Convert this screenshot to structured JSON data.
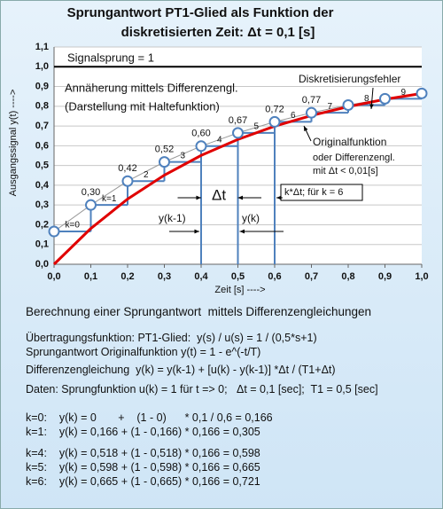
{
  "chart_data": {
    "type": "line",
    "title": "Sprungantwort PT1-Glied als Funktion der",
    "subtitle": "diskretisierten Zeit:  Δt = 0,1 [s]",
    "x_label": "Zeit [s] ---->",
    "y_label": "Ausgangssignal y(t)   ---->",
    "x": [
      0,
      0.1,
      0.2,
      0.3,
      0.4,
      0.5,
      0.6,
      0.7,
      0.8,
      0.9,
      1.0
    ],
    "series": [
      {
        "color": "#e00000",
        "values": [
          0,
          0.181,
          0.33,
          0.451,
          0.551,
          0.632,
          0.699,
          0.753,
          0.798,
          0.835,
          0.865
        ]
      },
      {
        "color": "#4f81bd",
        "values": [
          0.166,
          0.3,
          0.421,
          0.518,
          0.598,
          0.665,
          0.721,
          0.767,
          0.806,
          0.838,
          0.865
        ],
        "value_labels": [
          null,
          "0,30",
          "0,42",
          "0,52",
          "0,60",
          "0,67",
          "0,72",
          "0,77",
          null,
          null,
          null
        ],
        "step_labels": [
          "k=0",
          "k=1",
          "2",
          "3",
          "4",
          "5",
          "6",
          "7",
          "8",
          "9",
          null
        ]
      }
    ],
    "xlim": [
      0,
      1.0
    ],
    "xticks": [
      {
        "value": 0,
        "label": "0,0"
      },
      {
        "value": 0.1,
        "label": "0,1"
      },
      {
        "value": 0.2,
        "label": "0,2"
      },
      {
        "value": 0.3,
        "label": "0,3"
      },
      {
        "value": 0.4,
        "label": "0,4"
      },
      {
        "value": 0.5,
        "label": "0,5"
      },
      {
        "value": 0.6,
        "label": "0,6"
      },
      {
        "value": 0.7,
        "label": "0,7"
      },
      {
        "value": 0.8,
        "label": "0,8"
      },
      {
        "value": 0.9,
        "label": "0,9"
      },
      {
        "value": 1.0,
        "label": "1,0"
      }
    ],
    "ylim": [
      0,
      1.1
    ],
    "yticks": [
      {
        "value": 0,
        "label": "0,0"
      },
      {
        "value": 0.1,
        "label": "0,1"
      },
      {
        "value": 0.2,
        "label": "0,2"
      },
      {
        "value": 0.3,
        "label": "0,3"
      },
      {
        "value": 0.4,
        "label": "0,4"
      },
      {
        "value": 0.5,
        "label": "0,5"
      },
      {
        "value": 0.6,
        "label": "0,6"
      },
      {
        "value": 0.7,
        "label": "0,7"
      },
      {
        "value": 0.8,
        "label": "0,8"
      },
      {
        "value": 0.9,
        "label": "0,9"
      },
      {
        "value": 1.0,
        "label": "1,0"
      },
      {
        "value": 1.1,
        "label": "1,1"
      }
    ],
    "grid": true,
    "step_level": 1.0,
    "annotations": [
      "Signalsprung = 1",
      "Annäherung mittels Differenzengl.",
      "(Darstellung mit Haltefunktion)",
      "Diskretisierungsfehler",
      "Originalfunktion",
      "oder Differenzengl.",
      "mit Δt < 0,01[s]",
      "Δt",
      "y(k-1)",
      "y(k)",
      "k*Δt;  für k = 6"
    ]
  },
  "document": {
    "heading": "Berechnung einer Sprungantwort  mittels Differenzengleichungen",
    "lines": [
      "Übertragungsfunktion: PT1-Glied:  y(s) / u(s) = 1 / (0,5*s+1)",
      "Sprungantwort Originalfunktion y(t) = 1 - e^(-t/T)",
      "Differenzengleichung  y(k) = y(k-1) + [u(k) - y(k-1)] *Δt / (T1+Δt)",
      "Daten: Sprungfunktion u(k) = 1 für t => 0;   Δt = 0,1 [sec];  T1 = 0,5 [sec]",
      "k=0:    y(k) = 0       +    (1 - 0)      * 0,1 / 0,6 = 0,166",
      "k=1:    y(k) = 0,166 + (1 - 0,166) * 0,166 = 0,305",
      "k=4:    y(k) = 0,518 + (1 - 0,518) * 0,166 = 0,598",
      "k=5:    y(k) = 0,598 + (1 - 0,598) * 0,166 = 0,665",
      "k=6:    y(k) = 0,665 + (1 - 0,665) * 0,166 = 0,721"
    ]
  }
}
